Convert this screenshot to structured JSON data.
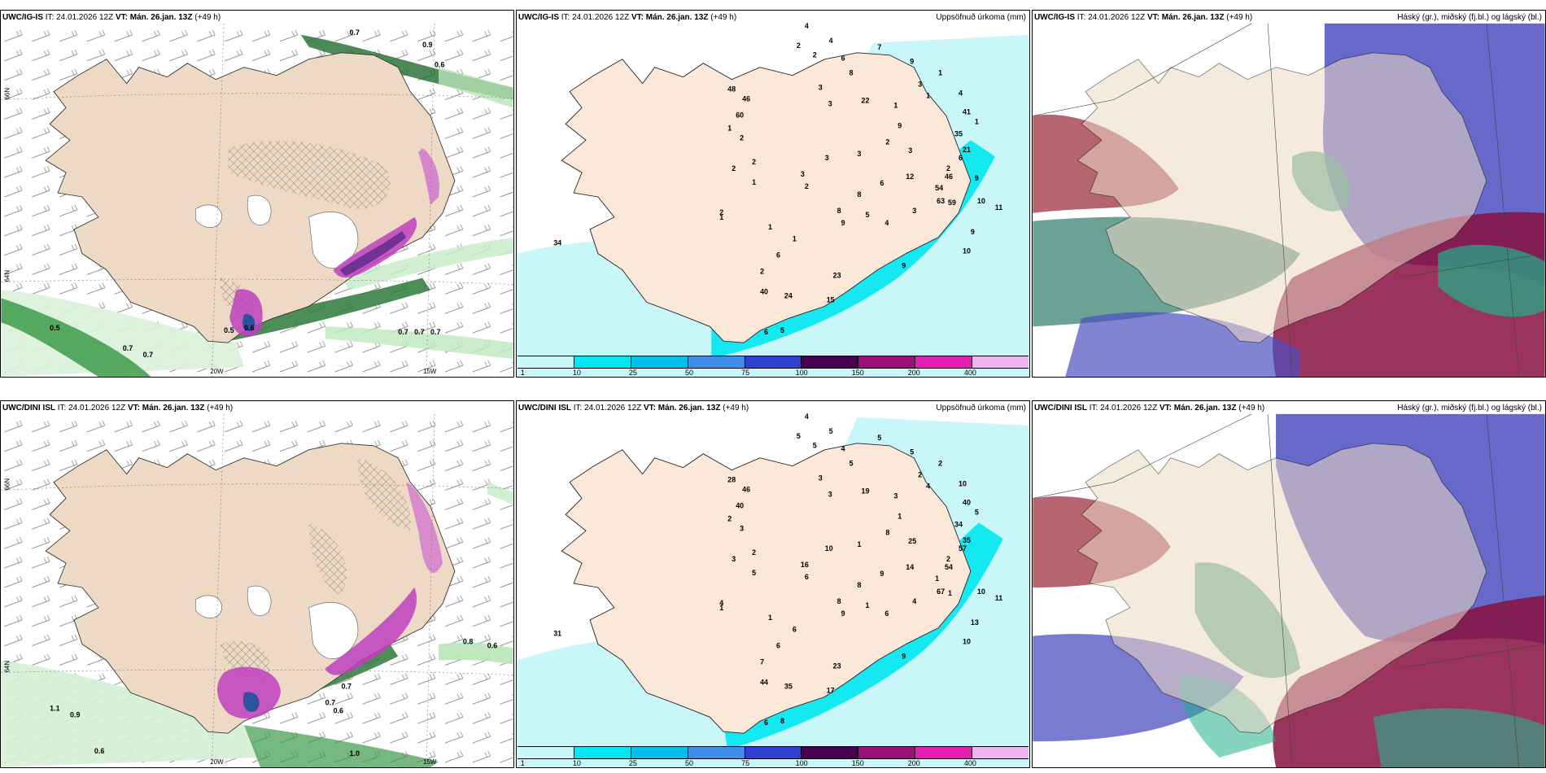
{
  "panels": {
    "r1c1": {
      "model": "UWC/IG-IS",
      "init": "IT: 24.01.2026 12Z",
      "vt_label": "VT:",
      "vt_time": "Mán. 26.jan. 13Z",
      "lead": "(+49 h)",
      "right_title": ""
    },
    "r1c2": {
      "model": "UWC/IG-IS",
      "init": "IT: 24.01.2026 12Z",
      "vt_label": "VT:",
      "vt_time": "Mán. 26.jan. 13Z",
      "lead": "(+49 h)",
      "right_title": "Uppsöfnuð úrkoma (mm)"
    },
    "r1c3": {
      "model": "UWC/IG-IS",
      "init": "IT: 24.01.2026 12Z",
      "vt_label": "VT:",
      "vt_time": "Mán. 26.jan. 13Z",
      "lead": "(+49 h)",
      "right_title": "Háský (gr.), miðský (fj.bl.) og lágský (bl.)"
    },
    "r2c1": {
      "model": "UWC/DINI ISL",
      "init": "IT: 24.01.2026 12Z",
      "vt_label": "VT:",
      "vt_time": "Mán. 26.jan. 13Z",
      "lead": "(+49 h)",
      "right_title": ""
    },
    "r2c2": {
      "model": "UWC/DINI ISL",
      "init": "IT: 24.01.2026 12Z",
      "vt_label": "VT:",
      "vt_time": "Mán. 26.jan. 13Z",
      "lead": "(+49 h)",
      "right_title": "Uppsöfnuð úrkoma (mm)"
    },
    "r2c3": {
      "model": "UWC/DINI ISL",
      "init": "IT: 24.01.2026 12Z",
      "vt_label": "VT:",
      "vt_time": "Mán. 26.jan. 13Z",
      "lead": "(+49 h)",
      "right_title": "Háský (gr.), miðský (fj.bl.) og lágský (bl.)"
    }
  },
  "axes": {
    "lon_20w": "20W",
    "lon_15w": "15W",
    "lat_66n": "66N",
    "lat_64n": "64N"
  },
  "colorbar": {
    "ticks": [
      "1",
      "10",
      "25",
      "50",
      "75",
      "100",
      "150",
      "200",
      "400"
    ],
    "colors": [
      "#c9f6f9",
      "#00e7f0",
      "#00c0e8",
      "#3f8fea",
      "#2f3fd0",
      "#4a0050",
      "#9a0e7a",
      "#e31fb0",
      "#f0b4f0"
    ]
  },
  "precip_labels": {
    "top": [
      "4",
      "2",
      "4",
      "2",
      "6",
      "7",
      "8",
      "9",
      "3",
      "3",
      "22",
      "3",
      "41",
      "35",
      "21",
      "3",
      "12",
      "46",
      "63",
      "3",
      "10",
      "11",
      "9",
      "10",
      "9",
      "23",
      "15",
      "5",
      "6",
      "24",
      "40",
      "34",
      "48",
      "46",
      "60",
      "1",
      "2",
      "2",
      "2",
      "1",
      "3",
      "8",
      "9",
      "1",
      "1",
      "6",
      "2",
      "5",
      "4",
      "8",
      "6",
      "2",
      "9",
      "1",
      "1",
      "1",
      "3",
      "3",
      "2",
      "2",
      "1",
      "6",
      "2",
      "4",
      "1",
      "54",
      "59",
      "9"
    ],
    "bottom": [
      "4",
      "5",
      "5",
      "5",
      "4",
      "5",
      "5",
      "5",
      "3",
      "3",
      "19",
      "2",
      "40",
      "34",
      "35",
      "25",
      "14",
      "54",
      "67",
      "4",
      "10",
      "11",
      "13",
      "10",
      "9",
      "23",
      "17",
      "8",
      "6",
      "35",
      "44",
      "31",
      "28",
      "46",
      "40",
      "2",
      "3",
      "3",
      "4",
      "1",
      "10",
      "8",
      "9",
      "1",
      "6",
      "6",
      "7",
      "1",
      "6",
      "8",
      "9",
      "8",
      "1",
      "3",
      "4",
      "2",
      "1",
      "16",
      "6",
      "2",
      "5",
      "57",
      "2",
      "10",
      "5",
      "1",
      "1"
    ]
  },
  "wind_labels": {
    "top": [
      "0.7",
      "0.9",
      "0.6",
      "0.5",
      "0.6",
      "0.7",
      "0.7",
      "0.7",
      "0.5",
      "0.7",
      "0.7"
    ],
    "bottom": [
      "0.8",
      "0.6",
      "1.1",
      "0.9",
      "0.7",
      "0.6",
      "1.0",
      "0.6",
      "0.7"
    ]
  }
}
